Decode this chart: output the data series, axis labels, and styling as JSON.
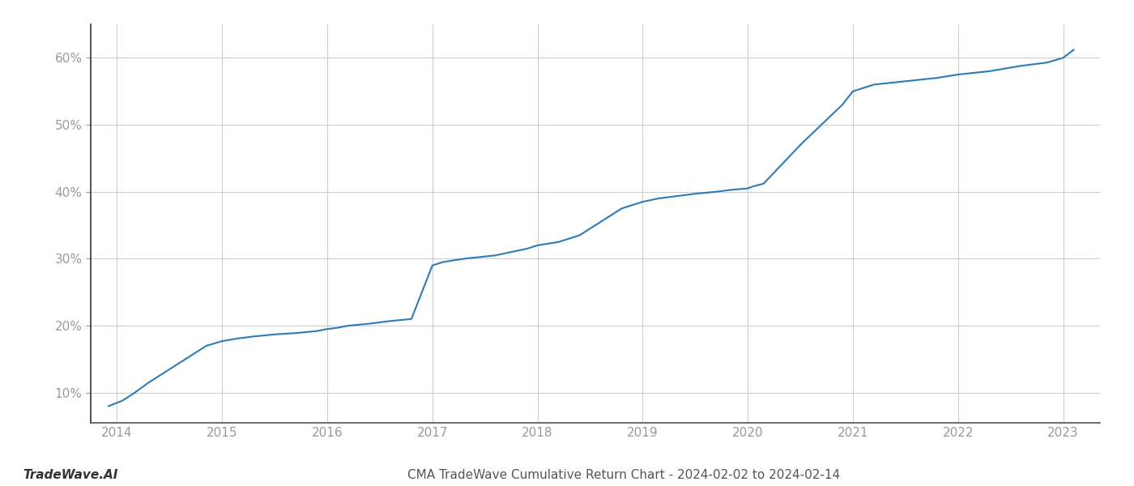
{
  "title": "CMA TradeWave Cumulative Return Chart - 2024-02-02 to 2024-02-14",
  "watermark": "TradeWave.AI",
  "line_color": "#2b7cb8",
  "line_width": 1.5,
  "background_color": "#ffffff",
  "grid_color": "#cccccc",
  "x_years": [
    2014,
    2015,
    2016,
    2017,
    2018,
    2019,
    2020,
    2021,
    2022,
    2023
  ],
  "x_data": [
    2013.92,
    2014.05,
    2014.15,
    2014.3,
    2014.5,
    2014.7,
    2014.85,
    2015.0,
    2015.15,
    2015.3,
    2015.5,
    2015.7,
    2015.9,
    2016.0,
    2016.1,
    2016.2,
    2016.4,
    2016.6,
    2016.8,
    2017.0,
    2017.1,
    2017.3,
    2017.6,
    2017.9,
    2018.0,
    2018.2,
    2018.4,
    2018.6,
    2018.8,
    2019.0,
    2019.15,
    2019.3,
    2019.5,
    2019.7,
    2019.85,
    2020.0,
    2020.05,
    2020.15,
    2020.5,
    2020.7,
    2020.9,
    2021.0,
    2021.2,
    2021.5,
    2021.8,
    2022.0,
    2022.3,
    2022.6,
    2022.85,
    2023.0,
    2023.1
  ],
  "y_data": [
    8.0,
    8.8,
    9.8,
    11.5,
    13.5,
    15.5,
    17.0,
    17.7,
    18.1,
    18.4,
    18.7,
    18.9,
    19.2,
    19.5,
    19.7,
    20.0,
    20.3,
    20.7,
    21.0,
    29.0,
    29.5,
    30.0,
    30.5,
    31.5,
    32.0,
    32.5,
    33.5,
    35.5,
    37.5,
    38.5,
    39.0,
    39.3,
    39.7,
    40.0,
    40.3,
    40.5,
    40.8,
    41.2,
    47.0,
    50.0,
    53.0,
    55.0,
    56.0,
    56.5,
    57.0,
    57.5,
    58.0,
    58.8,
    59.3,
    60.0,
    61.2
  ],
  "ylim": [
    5.5,
    65
  ],
  "yticks": [
    10,
    20,
    30,
    40,
    50,
    60
  ],
  "xlim": [
    2013.75,
    2023.35
  ],
  "tick_label_color": "#999999",
  "axis_color": "#555555",
  "title_color": "#555555",
  "watermark_color": "#333333",
  "left_spine_color": "#333333",
  "bottom_spine_color": "#555555"
}
